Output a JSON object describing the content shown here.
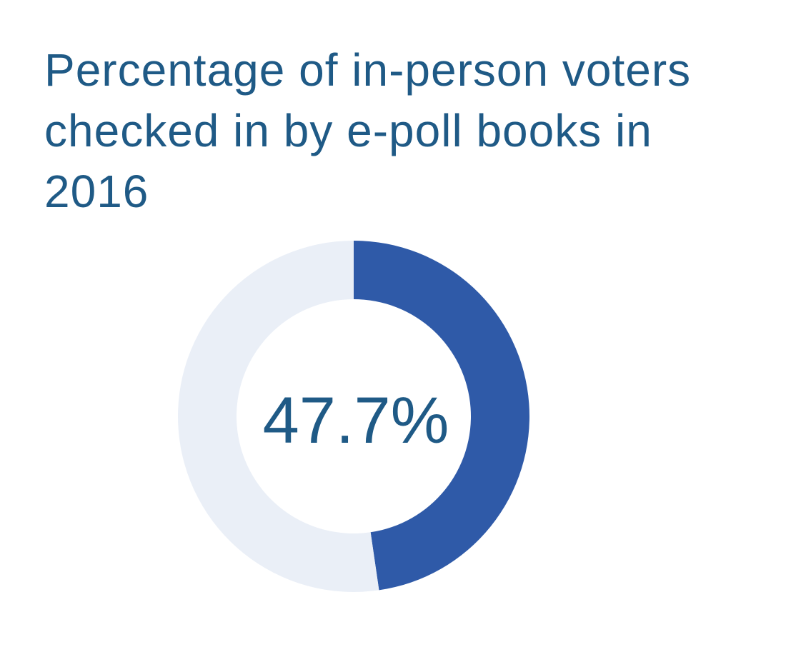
{
  "chart_data": {
    "type": "pie",
    "title": "Percentage of in-person voters checked in by e-poll books in 2016",
    "center_label": "47.7%",
    "slices": [
      {
        "value": 47.7
      },
      {
        "value": 52.3
      }
    ]
  },
  "colors": {
    "title": "#1f5a86",
    "primary_slice": "#2f5aa8",
    "remainder_slice": "#eaeff7",
    "center_label": "#1f5a86"
  }
}
